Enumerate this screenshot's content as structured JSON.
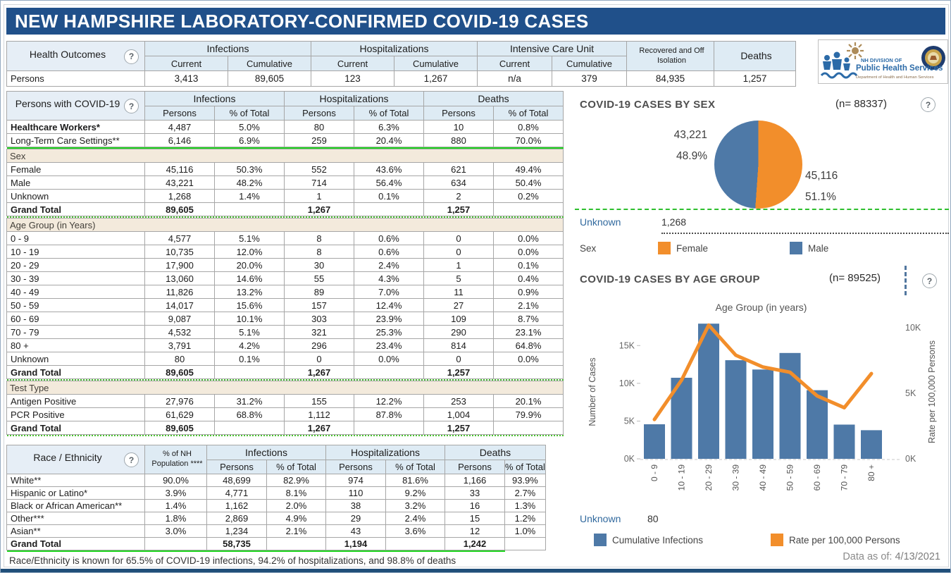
{
  "page": {
    "title": "NEW HAMPSHIRE LABORATORY-CONFIRMED COVID-19 CASES",
    "help_glyph": "?",
    "data_as_of_label": "Data as of:",
    "data_as_of_value": "4/13/2021"
  },
  "colors": {
    "title_bar": "#20508a",
    "header_fill": "#deebf4",
    "band_fill": "#f3eadc",
    "bar_blue": "#4e79a7",
    "line_orange": "#f28e2b",
    "green_separator": "#1ed41e"
  },
  "logo": {
    "line1": "NH DIVISION OF",
    "line2": "Public Health Services",
    "line3": "Department of Health and Human Services"
  },
  "health_outcomes": {
    "label": "Health Outcomes",
    "groups": [
      {
        "label": "Infections",
        "cols": [
          "Current",
          "Cumulative"
        ]
      },
      {
        "label": "Hospitalizations",
        "cols": [
          "Current",
          "Cumulative"
        ]
      },
      {
        "label": "Intensive Care Unit",
        "cols": [
          "Current",
          "Cumulative"
        ]
      },
      {
        "label": "Recovered and Off Isolation",
        "cols": []
      },
      {
        "label": "Deaths",
        "cols": []
      }
    ],
    "row_label": "Persons",
    "values": [
      "3,413",
      "89,605",
      "123",
      "1,267",
      "n/a",
      "379",
      "84,935",
      "1,257"
    ]
  },
  "persons_table": {
    "label": "Persons with COVID-19",
    "groups": [
      "Infections",
      "Hospitalizations",
      "Deaths"
    ],
    "subheaders": [
      "Persons",
      "% of Total"
    ],
    "blocks": [
      {
        "type": "row",
        "label": "Healthcare Workers*",
        "bold_label": true,
        "values": [
          "4,487",
          "5.0%",
          "80",
          "6.3%",
          "10",
          "0.8%"
        ]
      },
      {
        "type": "row",
        "label": "Long-Term Care Settings**",
        "values": [
          "6,146",
          "6.9%",
          "259",
          "20.4%",
          "880",
          "70.0%"
        ]
      },
      {
        "type": "sep",
        "style": "solid"
      },
      {
        "type": "band",
        "label": "Sex"
      },
      {
        "type": "row",
        "label": "Female",
        "values": [
          "45,116",
          "50.3%",
          "552",
          "43.6%",
          "621",
          "49.4%"
        ]
      },
      {
        "type": "row",
        "label": "Male",
        "values": [
          "43,221",
          "48.2%",
          "714",
          "56.4%",
          "634",
          "50.4%"
        ]
      },
      {
        "type": "row",
        "label": "Unknown",
        "values": [
          "1,268",
          "1.4%",
          "1",
          "0.1%",
          "2",
          "0.2%"
        ]
      },
      {
        "type": "row",
        "label": "Grand Total",
        "total": true,
        "values": [
          "89,605",
          "",
          "1,267",
          "",
          "1,257",
          ""
        ]
      },
      {
        "type": "sep",
        "style": "dotted"
      },
      {
        "type": "band",
        "label": "Age Group (in Years)"
      },
      {
        "type": "row",
        "label": "0 - 9",
        "values": [
          "4,577",
          "5.1%",
          "8",
          "0.6%",
          "0",
          "0.0%"
        ]
      },
      {
        "type": "row",
        "label": "10 - 19",
        "values": [
          "10,735",
          "12.0%",
          "8",
          "0.6%",
          "0",
          "0.0%"
        ]
      },
      {
        "type": "row",
        "label": "20 - 29",
        "values": [
          "17,900",
          "20.0%",
          "30",
          "2.4%",
          "1",
          "0.1%"
        ]
      },
      {
        "type": "row",
        "label": "30 - 39",
        "values": [
          "13,060",
          "14.6%",
          "55",
          "4.3%",
          "5",
          "0.4%"
        ]
      },
      {
        "type": "row",
        "label": "40 - 49",
        "values": [
          "11,826",
          "13.2%",
          "89",
          "7.0%",
          "11",
          "0.9%"
        ]
      },
      {
        "type": "row",
        "label": "50 - 59",
        "values": [
          "14,017",
          "15.6%",
          "157",
          "12.4%",
          "27",
          "2.1%"
        ]
      },
      {
        "type": "row",
        "label": "60 - 69",
        "values": [
          "9,087",
          "10.1%",
          "303",
          "23.9%",
          "109",
          "8.7%"
        ]
      },
      {
        "type": "row",
        "label": "70 - 79",
        "values": [
          "4,532",
          "5.1%",
          "321",
          "25.3%",
          "290",
          "23.1%"
        ]
      },
      {
        "type": "row",
        "label": "80 +",
        "values": [
          "3,791",
          "4.2%",
          "296",
          "23.4%",
          "814",
          "64.8%"
        ]
      },
      {
        "type": "row",
        "label": "Unknown",
        "values": [
          "80",
          "0.1%",
          "0",
          "0.0%",
          "0",
          "0.0%"
        ]
      },
      {
        "type": "row",
        "label": "Grand Total",
        "total": true,
        "values": [
          "89,605",
          "",
          "1,267",
          "",
          "1,257",
          ""
        ]
      },
      {
        "type": "sep",
        "style": "dotted"
      },
      {
        "type": "band",
        "label": "Test Type"
      },
      {
        "type": "row",
        "label": "Antigen Positive",
        "values": [
          "27,976",
          "31.2%",
          "155",
          "12.2%",
          "253",
          "20.1%"
        ]
      },
      {
        "type": "row",
        "label": "PCR Positive",
        "values": [
          "61,629",
          "68.8%",
          "1,112",
          "87.8%",
          "1,004",
          "79.9%"
        ]
      },
      {
        "type": "row",
        "label": "Grand Total",
        "total": true,
        "values": [
          "89,605",
          "",
          "1,267",
          "",
          "1,257",
          ""
        ]
      },
      {
        "type": "sep",
        "style": "dotted"
      }
    ]
  },
  "race_table": {
    "label": "Race / Ethnicity",
    "population_header": "% of NH Population ****",
    "groups": [
      "Infections",
      "Hospitalizations",
      "Deaths"
    ],
    "subheaders": [
      "Persons",
      "% of Total"
    ],
    "blocks": [
      {
        "type": "row",
        "label": "White**",
        "values": [
          "90.0%",
          "48,699",
          "82.9%",
          "974",
          "81.6%",
          "1,166",
          "93.9%"
        ]
      },
      {
        "type": "row",
        "label": "Hispanic or Latino*",
        "values": [
          "3.9%",
          "4,771",
          "8.1%",
          "110",
          "9.2%",
          "33",
          "2.7%"
        ]
      },
      {
        "type": "row",
        "label": "Black or African American**",
        "values": [
          "1.4%",
          "1,162",
          "2.0%",
          "38",
          "3.2%",
          "16",
          "1.3%"
        ]
      },
      {
        "type": "row",
        "label": "Other***",
        "values": [
          "1.8%",
          "2,869",
          "4.9%",
          "29",
          "2.4%",
          "15",
          "1.2%"
        ]
      },
      {
        "type": "row",
        "label": "Asian**",
        "values": [
          "3.0%",
          "1,234",
          "2.1%",
          "43",
          "3.6%",
          "12",
          "1.0%"
        ]
      },
      {
        "type": "row",
        "label": "Grand Total",
        "total": true,
        "values": [
          "",
          "58,735",
          "",
          "1,194",
          "",
          "1,242",
          ""
        ]
      },
      {
        "type": "sep",
        "style": "solid"
      }
    ],
    "footnote": "Race/Ethnicity is known for 65.5% of COVID-19 infections, 94.2% of hospitalizations, and 98.8% of deaths"
  },
  "chart_data": [
    {
      "type": "pie",
      "title": "COVID-19 CASES BY SEX",
      "n_label": "(n= 88337)",
      "slices": [
        {
          "label": "Female",
          "value": 45116,
          "pct": 51.1,
          "value_display": "45,116",
          "pct_display": "51.1%",
          "color": "#f28e2b"
        },
        {
          "label": "Male",
          "value": 43221,
          "pct": 48.9,
          "value_display": "43,221",
          "pct_display": "48.9%",
          "color": "#4e79a7"
        }
      ],
      "unknown_label": "Unknown",
      "unknown_value": "1,268",
      "legend_title": "Sex",
      "legend_position": "bottom"
    },
    {
      "type": "bar",
      "title": "COVID-19 CASES BY AGE GROUP",
      "n_label": "(n= 89525)",
      "x_title": "Age Group (in years)",
      "categories": [
        "0 - 9",
        "10 - 19",
        "20 - 29",
        "30 - 39",
        "40 - 49",
        "50 - 59",
        "60 - 69",
        "70 - 79",
        "80 +"
      ],
      "series": [
        {
          "name": "Cumulative Infections",
          "type": "bar",
          "color": "#4e79a7",
          "values": [
            4577,
            10735,
            17900,
            13060,
            11826,
            14017,
            9087,
            4532,
            3791
          ]
        },
        {
          "name": "Rate per 100,000 Persons",
          "type": "line",
          "color": "#f28e2b",
          "values": [
            3000,
            6000,
            10200,
            7900,
            7000,
            6600,
            4800,
            3900,
            6500
          ]
        }
      ],
      "y_left": {
        "label": "Number of Cases",
        "ticks": [
          "0K",
          "5K",
          "10K",
          "15K"
        ],
        "tick_values": [
          0,
          5000,
          10000,
          15000
        ],
        "max": 18200
      },
      "y_right": {
        "label": "Rate per 100,000 Persons",
        "ticks": [
          "0K",
          "5K",
          "10K"
        ],
        "tick_values": [
          0,
          5000,
          10000
        ],
        "max": 10480
      },
      "unknown_label": "Unknown",
      "unknown_value": "80",
      "grid": false,
      "legend_position": "bottom"
    }
  ]
}
